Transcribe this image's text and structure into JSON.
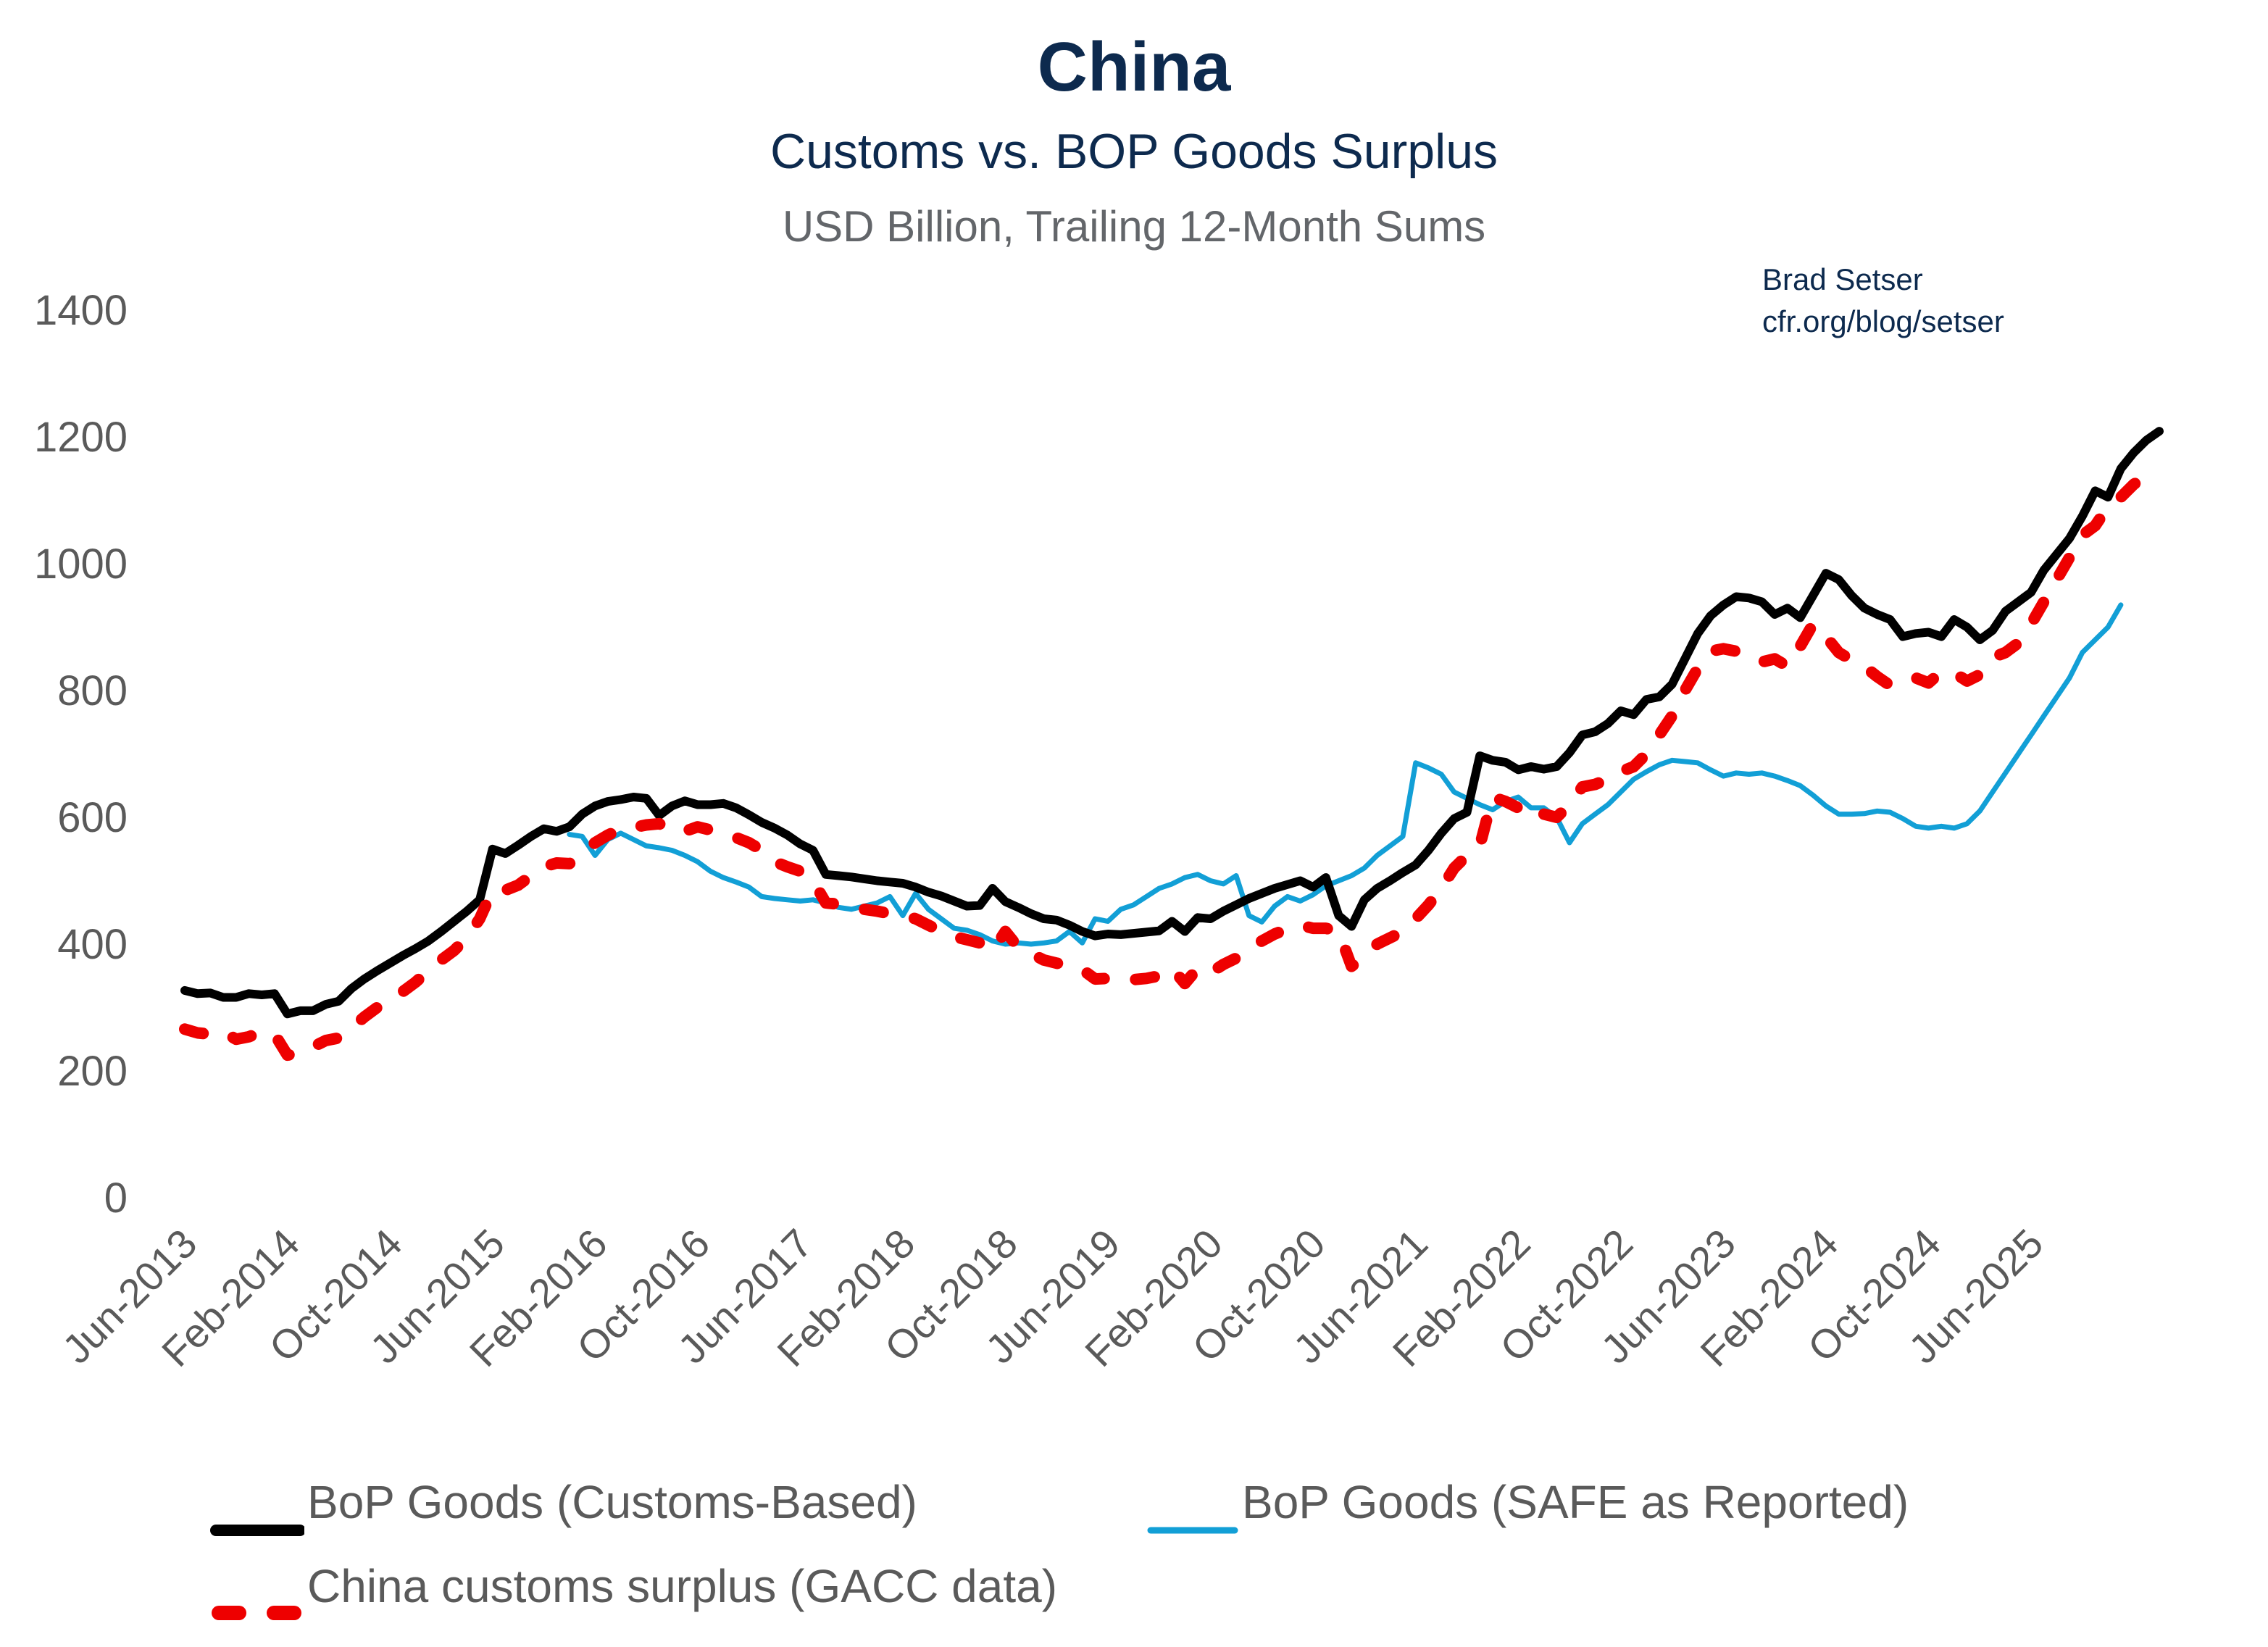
{
  "header": {
    "title": "China",
    "subtitle": "Customs vs. BOP Goods Surplus",
    "units": "USD Billion, Trailing 12-Month Sums",
    "credit_name": "Brad Setser",
    "credit_url": "cfr.org/blog/setser"
  },
  "colors": {
    "title": "#0d2a4e",
    "axis_text": "#5a5a5a",
    "customs_based": "#000000",
    "safe_reported": "#129fd6",
    "gacc": "#ee0000"
  },
  "legend": {
    "items": [
      {
        "label": "BoP Goods (Customs-Based)",
        "style": "solid-thick",
        "color": "#000000"
      },
      {
        "label": "BoP Goods (SAFE as Reported)",
        "style": "solid-thin",
        "color": "#129fd6"
      },
      {
        "label": "China customs surplus (GACC data)",
        "style": "dashed",
        "color": "#ee0000"
      }
    ]
  },
  "chart_data": {
    "type": "line",
    "title": "China",
    "subtitle": "Customs vs. BOP Goods Surplus",
    "ylabel": "USD Billion, Trailing 12-Month Sums",
    "xlabel": "",
    "ylim": [
      0,
      1400
    ],
    "yticks": [
      0,
      200,
      400,
      600,
      800,
      1000,
      1200,
      1400
    ],
    "grid": false,
    "legend_position": "bottom",
    "x_start": "Jun-2013",
    "x_end": "Jun-2025",
    "x_frequency": "monthly",
    "xtick_labels": [
      "Jun-2013",
      "Feb-2014",
      "Oct-2014",
      "Jun-2015",
      "Feb-2016",
      "Oct-2016",
      "Jun-2017",
      "Feb-2018",
      "Oct-2018",
      "Jun-2019",
      "Feb-2020",
      "Oct-2020",
      "Jun-2021",
      "Feb-2022",
      "Oct-2022",
      "Jun-2023",
      "Feb-2024",
      "Oct-2024",
      "Jun-2025"
    ],
    "xtick_every_n_months": 8,
    "series": [
      {
        "name": "BoP Goods (Customs-Based)",
        "start_index": 0,
        "values": [
          327,
          322,
          323,
          316,
          316,
          322,
          320,
          322,
          290,
          295,
          295,
          305,
          310,
          330,
          345,
          358,
          370,
          382,
          393,
          405,
          420,
          436,
          452,
          470,
          550,
          543,
          556,
          570,
          582,
          578,
          585,
          605,
          618,
          625,
          628,
          632,
          630,
          603,
          618,
          626,
          620,
          620,
          622,
          615,
          604,
          592,
          583,
          572,
          558,
          548,
          510,
          508,
          506,
          503,
          500,
          498,
          496,
          490,
          482,
          476,
          468,
          460,
          461,
          488,
          467,
          458,
          448,
          440,
          438,
          430,
          420,
          413,
          416,
          415,
          417,
          419,
          421,
          436,
          420,
          442,
          440,
          452,
          462,
          472,
          480,
          488,
          494,
          500,
          490,
          505,
          445,
          428,
          470,
          488,
          500,
          513,
          525,
          548,
          575,
          598,
          608,
          697,
          690,
          687,
          675,
          680,
          676,
          680,
          702,
          730,
          735,
          748,
          768,
          762,
          786,
          790,
          810,
          850,
          890,
          918,
          935,
          948,
          946,
          940,
          920,
          930,
          915,
          950,
          985,
          975,
          950,
          930,
          920,
          912,
          885,
          890,
          892,
          885,
          912,
          900,
          880,
          895,
          925,
          940,
          955,
          990,
          1015,
          1040,
          1075,
          1115,
          1105,
          1150,
          1175,
          1195,
          1209
        ]
      },
      {
        "name": "BoP Goods (SAFE as Reported)",
        "start_index": 30,
        "values": [
          573,
          570,
          540,
          565,
          575,
          565,
          555,
          552,
          548,
          540,
          530,
          515,
          505,
          498,
          490,
          475,
          472,
          470,
          468,
          470,
          465,
          458,
          455,
          460,
          465,
          475,
          445,
          480,
          455,
          440,
          425,
          422,
          415,
          405,
          400,
          402,
          400,
          402,
          405,
          420,
          402,
          440,
          436,
          455,
          462,
          475,
          488,
          495,
          505,
          510,
          500,
          495,
          508,
          445,
          435,
          460,
          475,
          468,
          478,
          492,
          500,
          508,
          520,
          540,
          555,
          570,
          686,
          678,
          668,
          640,
          630,
          620,
          612,
          625,
          632,
          615,
          615,
          600,
          560,
          590,
          605,
          620,
          640,
          660,
          672,
          683,
          690,
          688,
          686,
          675,
          665,
          670,
          668,
          670,
          665,
          658,
          650,
          635,
          618,
          605,
          605,
          606,
          610,
          608,
          598,
          586,
          583,
          586,
          583,
          590,
          610,
          640,
          670,
          700,
          730,
          760,
          790,
          820,
          860,
          880,
          900,
          935
        ]
      },
      {
        "name": "China customs surplus (GACC data)",
        "start_index": 0,
        "values": [
          266,
          260,
          258,
          262,
          250,
          254,
          262,
          258,
          225,
          228,
          238,
          248,
          252,
          268,
          285,
          300,
          312,
          325,
          340,
          358,
          375,
          390,
          410,
          440,
          485,
          485,
          493,
          508,
          522,
          528,
          527,
          542,
          560,
          572,
          582,
          584,
          588,
          590,
          578,
          578,
          585,
          580,
          575,
          568,
          560,
          548,
          530,
          522,
          515,
          500,
          465,
          463,
          458,
          455,
          452,
          448,
          446,
          440,
          430,
          420,
          412,
          407,
          402,
          390,
          420,
          395,
          385,
          375,
          370,
          367,
          360,
          345,
          346,
          342,
          344,
          346,
          350,
          362,
          338,
          362,
          355,
          368,
          378,
          392,
          405,
          416,
          424,
          430,
          425,
          425,
          420,
          365,
          380,
          400,
          410,
          420,
          440,
          462,
          488,
          520,
          540,
          555,
          632,
          625,
          615,
          598,
          605,
          600,
          620,
          648,
          652,
          660,
          672,
          680,
          700,
          730,
          760,
          800,
          835,
          862,
          866,
          862,
          855,
          845,
          850,
          838,
          870,
          905,
          885,
          860,
          848,
          838,
          822,
          808,
          814,
          820,
          812,
          830,
          828,
          815,
          825,
          852,
          860,
          875,
          905,
          940,
          975,
          1010,
          1045,
          1060,
          1090,
          1105,
          1125,
          1140
        ]
      }
    ]
  }
}
